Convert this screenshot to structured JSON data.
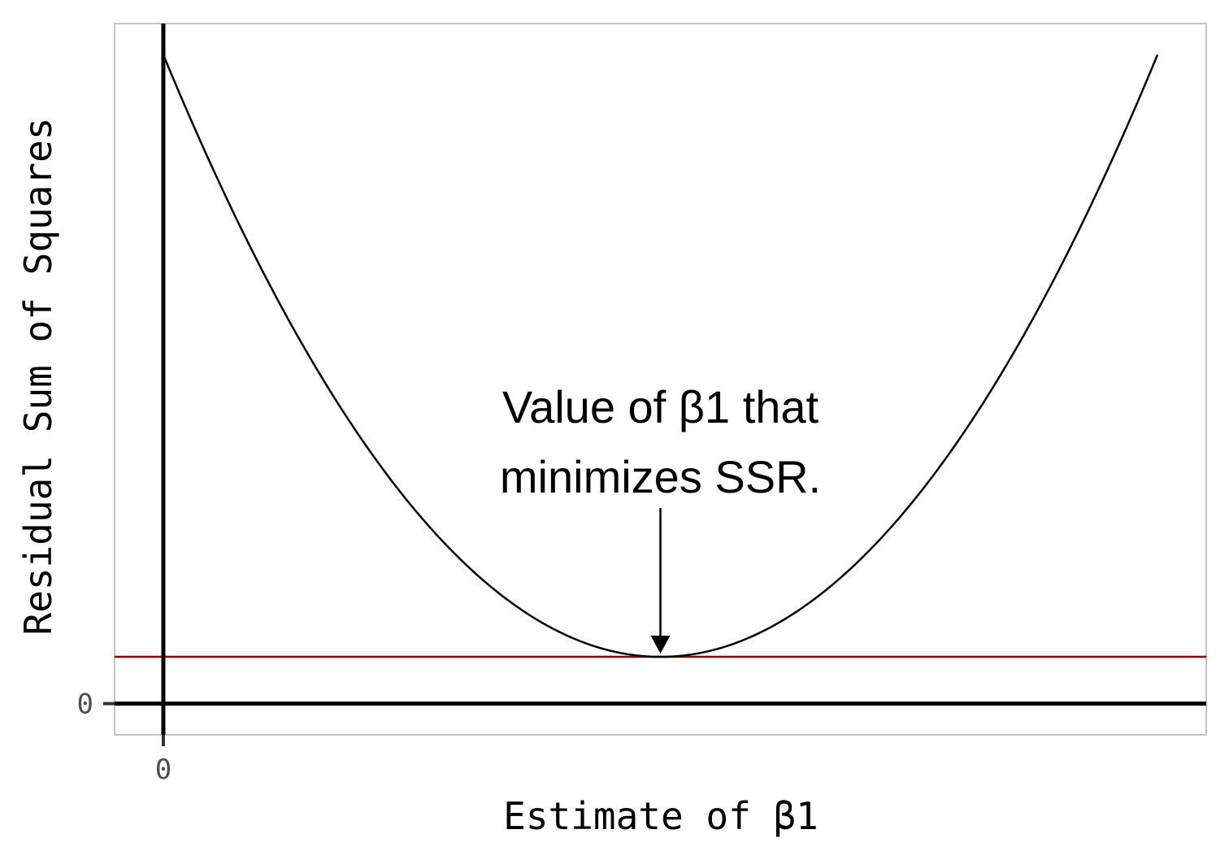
{
  "chart_data": {
    "type": "line",
    "title": "",
    "xlabel": "Estimate of β1",
    "ylabel": "Residual Sum of Squares",
    "x_ticks": [
      {
        "value": 0,
        "label": "0"
      }
    ],
    "y_ticks": [
      {
        "value": 0,
        "label": "0"
      }
    ],
    "xlim": [
      -1,
      21.4
    ],
    "ylim": [
      -1,
      21.8
    ],
    "grid": false,
    "legend": "none",
    "series": [
      {
        "type": "parabola",
        "vertex_x": 10.2,
        "min_value": 1.5,
        "x_range": [
          0,
          20.4
        ],
        "value_at_ends": 20.8,
        "color": "#000000"
      }
    ],
    "reference_lines": [
      {
        "orientation": "horizontal",
        "value": 1.5,
        "color": "#8b0000"
      },
      {
        "orientation": "horizontal",
        "value": 0,
        "color": "#000000"
      },
      {
        "orientation": "vertical",
        "value": 0,
        "color": "#000000"
      }
    ],
    "annotation": {
      "lines": [
        "Value of β1 that",
        "minimizes SSR."
      ],
      "points_to_x": 10.2,
      "points_to_y": 1.5
    }
  }
}
